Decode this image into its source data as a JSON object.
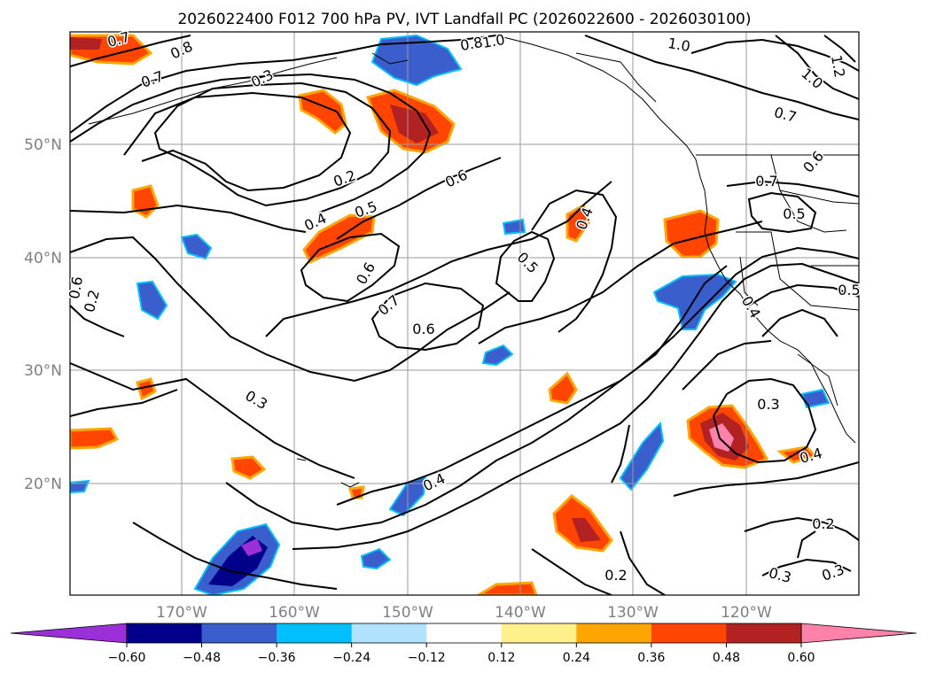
{
  "title": "2026022400 F012 700 hPa PV, IVT Landfall PC (2026022600 - 2026030100)",
  "lat_labels": [
    "50°N",
    "40°N",
    "30°N",
    "20°N"
  ],
  "lon_labels": [
    "170°W",
    "160°W",
    "150°W",
    "140°W",
    "130°W",
    "120°W"
  ],
  "contour_labels": [
    "0.7",
    "0.8",
    "1.0",
    "0.8",
    "1.0",
    "1.2",
    "1.0",
    "0.7",
    "0.6",
    "0.7",
    "0.3",
    "0.2",
    "0.4",
    "0.5",
    "0.6",
    "0.4",
    "0.5",
    "0.6",
    "0.7",
    "0.6",
    "0.7",
    "0.5",
    "0.6",
    "0.5",
    "0.4",
    "0.3",
    "0.3",
    "0.4",
    "0.4",
    "0.2",
    "0.2",
    "0.3",
    "0.3",
    "0.2"
  ],
  "colorbar": {
    "ticks": [
      "−0.60",
      "−0.48",
      "−0.36",
      "−0.24",
      "−0.12",
      "0.12",
      "0.24",
      "0.36",
      "0.48",
      "0.60"
    ],
    "colors": [
      "#9b30d9",
      "#00008b",
      "#3a5fcd",
      "#00bfff",
      "#b0e2ff",
      "#ffffff",
      "#fff08c",
      "#ffa500",
      "#ff4500",
      "#b22222",
      "#ff82ab"
    ]
  }
}
